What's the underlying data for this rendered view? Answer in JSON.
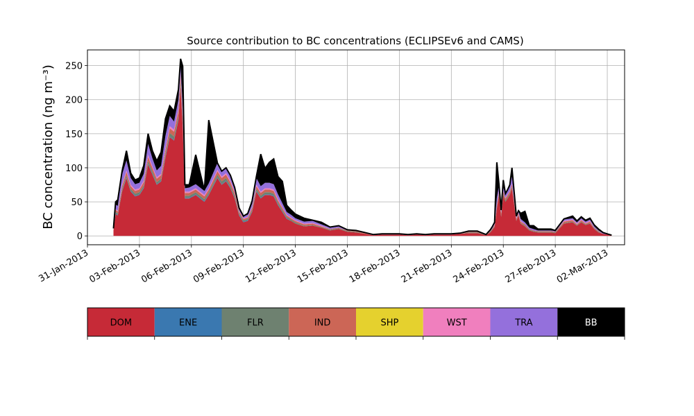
{
  "chart_data": [
    {
      "type": "area",
      "title": "Source contribution to BC concentrations (ECLIPSEv6 and CAMS)",
      "ylabel": "BC concentration (ng m⁻³)",
      "xlabel": "",
      "ylim": [
        -13,
        273
      ],
      "xlim": [
        "2013-01-31",
        "2013-03-03"
      ],
      "grid": true,
      "x_ticks": [
        "31-Jan-2013",
        "03-Feb-2013",
        "06-Feb-2013",
        "09-Feb-2013",
        "12-Feb-2013",
        "15-Feb-2013",
        "18-Feb-2013",
        "21-Feb-2013",
        "24-Feb-2013",
        "27-Feb-2013",
        "02-Mar-2013"
      ],
      "y_ticks": [
        0,
        50,
        100,
        150,
        200,
        250
      ],
      "x": [
        "2013-02-01 12:00",
        "2013-02-01 15:00",
        "2013-02-01 18:00",
        "2013-02-02 00:00",
        "2013-02-02 06:00",
        "2013-02-02 12:00",
        "2013-02-02 18:00",
        "2013-02-03 00:00",
        "2013-02-03 06:00",
        "2013-02-03 12:00",
        "2013-02-03 18:00",
        "2013-02-04 00:00",
        "2013-02-04 06:00",
        "2013-02-04 12:00",
        "2013-02-04 18:00",
        "2013-02-05 00:00",
        "2013-02-05 06:00",
        "2013-02-05 09:00",
        "2013-02-05 12:00",
        "2013-02-05 15:00",
        "2013-02-05 21:00",
        "2013-02-06 06:00",
        "2013-02-06 18:00",
        "2013-02-07 00:00",
        "2013-02-07 12:00",
        "2013-02-07 18:00",
        "2013-02-08 00:00",
        "2013-02-08 06:00",
        "2013-02-08 12:00",
        "2013-02-08 18:00",
        "2013-02-09 00:00",
        "2013-02-09 06:00",
        "2013-02-09 12:00",
        "2013-02-09 18:00",
        "2013-02-10 00:00",
        "2013-02-10 06:00",
        "2013-02-10 12:00",
        "2013-02-10 18:00",
        "2013-02-11 00:00",
        "2013-02-11 06:00",
        "2013-02-11 12:00",
        "2013-02-11 18:00",
        "2013-02-12 00:00",
        "2013-02-12 12:00",
        "2013-02-13 00:00",
        "2013-02-13 12:00",
        "2013-02-14 00:00",
        "2013-02-14 12:00",
        "2013-02-15 00:00",
        "2013-02-15 12:00",
        "2013-02-16 00:00",
        "2013-02-16 12:00",
        "2013-02-17 00:00",
        "2013-02-17 12:00",
        "2013-02-18 00:00",
        "2013-02-18 12:00",
        "2013-02-19 00:00",
        "2013-02-19 12:00",
        "2013-02-20 00:00",
        "2013-02-20 12:00",
        "2013-02-21 00:00",
        "2013-02-21 12:00",
        "2013-02-22 00:00",
        "2013-02-22 12:00",
        "2013-02-23 00:00",
        "2013-02-23 06:00",
        "2013-02-23 09:00",
        "2013-02-23 12:00",
        "2013-02-23 15:00",
        "2013-02-23 18:00",
        "2013-02-23 21:00",
        "2013-02-24 00:00",
        "2013-02-24 03:00",
        "2013-02-24 06:00",
        "2013-02-24 09:00",
        "2013-02-24 12:00",
        "2013-02-24 18:00",
        "2013-02-24 21:00",
        "2013-02-25 00:00",
        "2013-02-25 06:00",
        "2013-02-25 12:00",
        "2013-02-25 18:00",
        "2013-02-26 00:00",
        "2013-02-26 06:00",
        "2013-02-26 12:00",
        "2013-02-26 18:00",
        "2013-02-27 00:00",
        "2013-02-27 12:00",
        "2013-02-28 00:00",
        "2013-02-28 06:00",
        "2013-02-28 12:00",
        "2013-02-28 18:00",
        "2013-03-01 00:00",
        "2013-03-01 06:00",
        "2013-03-01 12:00",
        "2013-03-01 18:00",
        "2013-03-02 00:00",
        "2013-03-02 06:00"
      ],
      "series": [
        {
          "name": "DOM",
          "color": "#c62a37",
          "values": [
            8,
            32,
            30,
            65,
            85,
            65,
            58,
            60,
            70,
            105,
            90,
            75,
            80,
            115,
            145,
            140,
            170,
            220,
            160,
            55,
            55,
            60,
            50,
            60,
            85,
            75,
            80,
            70,
            55,
            30,
            20,
            22,
            35,
            65,
            55,
            60,
            60,
            58,
            45,
            35,
            25,
            22,
            18,
            14,
            15,
            12,
            8,
            10,
            6,
            5,
            3,
            1,
            2,
            2,
            2,
            1,
            2,
            1,
            2,
            2,
            2,
            3,
            4,
            4,
            1,
            5,
            9,
            13,
            40,
            60,
            28,
            60,
            50,
            55,
            60,
            70,
            22,
            30,
            18,
            14,
            8,
            6,
            5,
            5,
            5,
            5,
            4,
            18,
            20,
            15,
            20,
            16,
            18,
            10,
            5,
            3,
            2,
            1
          ]
        },
        {
          "name": "ENE",
          "color": "#3a78b0",
          "values": [
            0,
            1,
            1,
            1,
            1,
            1,
            1,
            1,
            1,
            1,
            1,
            1,
            1,
            1,
            1,
            1,
            1,
            1,
            1,
            1,
            1,
            1,
            1,
            1,
            1,
            1,
            1,
            1,
            1,
            1,
            1,
            1,
            1,
            1,
            1,
            1,
            1,
            1,
            1,
            1,
            1,
            0,
            0,
            0,
            0,
            0,
            0,
            0,
            0,
            0,
            0,
            0,
            0,
            0,
            0,
            0,
            0,
            0,
            0,
            0,
            0,
            0,
            0,
            0,
            0,
            0,
            0,
            0,
            0,
            0,
            0,
            0,
            0,
            0,
            0,
            0,
            0,
            0,
            0,
            0,
            0,
            0,
            0,
            0,
            0,
            0,
            0,
            0,
            0,
            0,
            0,
            0,
            0,
            0,
            0,
            0,
            0,
            0
          ]
        },
        {
          "name": "FLR",
          "color": "#6e8170",
          "values": [
            1,
            2,
            2,
            3,
            3,
            3,
            3,
            3,
            3,
            4,
            4,
            3,
            3,
            4,
            5,
            5,
            5,
            6,
            5,
            3,
            3,
            3,
            3,
            3,
            4,
            4,
            4,
            3,
            3,
            2,
            2,
            2,
            2,
            3,
            3,
            3,
            3,
            3,
            3,
            2,
            2,
            2,
            2,
            1,
            1,
            1,
            1,
            1,
            1,
            1,
            0,
            0,
            0,
            0,
            0,
            0,
            0,
            0,
            0,
            0,
            0,
            0,
            1,
            1,
            0,
            1,
            1,
            1,
            2,
            2,
            2,
            2,
            2,
            2,
            2,
            2,
            1,
            1,
            1,
            1,
            1,
            1,
            1,
            1,
            1,
            1,
            1,
            1,
            1,
            1,
            1,
            1,
            1,
            1,
            1,
            0,
            0,
            0
          ]
        },
        {
          "name": "IND",
          "color": "#cc6656",
          "values": [
            1,
            3,
            3,
            4,
            5,
            4,
            4,
            4,
            5,
            6,
            5,
            5,
            5,
            6,
            7,
            7,
            8,
            9,
            8,
            4,
            4,
            4,
            4,
            4,
            5,
            5,
            5,
            5,
            4,
            3,
            2,
            2,
            3,
            4,
            4,
            4,
            4,
            4,
            3,
            3,
            2,
            2,
            2,
            2,
            2,
            1,
            1,
            1,
            1,
            1,
            1,
            0,
            0,
            0,
            0,
            0,
            0,
            0,
            0,
            0,
            0,
            0,
            1,
            1,
            0,
            1,
            1,
            2,
            3,
            3,
            3,
            3,
            3,
            3,
            3,
            4,
            2,
            2,
            2,
            2,
            1,
            1,
            1,
            1,
            1,
            1,
            1,
            2,
            2,
            1,
            2,
            1,
            2,
            1,
            1,
            0,
            0,
            0
          ]
        },
        {
          "name": "SHP",
          "color": "#e5d12e",
          "values": [
            0,
            0,
            0,
            0,
            0,
            0,
            0,
            0,
            0,
            0,
            0,
            0,
            0,
            0,
            0,
            0,
            0,
            0,
            0,
            0,
            0,
            0,
            0,
            0,
            0,
            0,
            0,
            0,
            0,
            0,
            0,
            0,
            0,
            0,
            0,
            0,
            0,
            0,
            0,
            0,
            0,
            0,
            0,
            0,
            0,
            0,
            0,
            0,
            0,
            0,
            0,
            0,
            0,
            0,
            0,
            0,
            0,
            0,
            0,
            0,
            0,
            0,
            0,
            0,
            0,
            0,
            0,
            0,
            0,
            0,
            0,
            0,
            0,
            0,
            0,
            0,
            0,
            0,
            0,
            0,
            0,
            0,
            0,
            0,
            0,
            0,
            0,
            0,
            0,
            0,
            0,
            0,
            0,
            0,
            0,
            0,
            0,
            0
          ]
        },
        {
          "name": "WST",
          "color": "#f07fbe",
          "values": [
            0,
            1,
            1,
            2,
            2,
            2,
            2,
            2,
            2,
            3,
            2,
            2,
            2,
            3,
            3,
            3,
            3,
            4,
            3,
            2,
            2,
            2,
            2,
            2,
            2,
            2,
            2,
            2,
            2,
            1,
            1,
            1,
            1,
            2,
            2,
            2,
            2,
            2,
            2,
            1,
            1,
            1,
            1,
            1,
            1,
            1,
            0,
            0,
            0,
            0,
            0,
            0,
            0,
            0,
            0,
            0,
            0,
            0,
            0,
            0,
            0,
            0,
            0,
            0,
            0,
            0,
            0,
            1,
            1,
            1,
            1,
            1,
            1,
            1,
            1,
            1,
            1,
            1,
            1,
            0,
            0,
            0,
            0,
            0,
            0,
            0,
            0,
            1,
            1,
            1,
            1,
            1,
            1,
            0,
            0,
            0,
            0,
            0
          ]
        },
        {
          "name": "TRA",
          "color": "#9470dc",
          "values": [
            1,
            7,
            7,
            15,
            15,
            10,
            8,
            8,
            10,
            16,
            12,
            10,
            12,
            18,
            15,
            12,
            13,
            10,
            12,
            5,
            6,
            6,
            6,
            7,
            10,
            8,
            8,
            8,
            6,
            4,
            3,
            3,
            5,
            10,
            8,
            8,
            8,
            8,
            7,
            6,
            4,
            4,
            3,
            3,
            3,
            2,
            2,
            2,
            1,
            1,
            1,
            1,
            1,
            1,
            1,
            1,
            1,
            1,
            1,
            1,
            1,
            1,
            1,
            1,
            1,
            1,
            2,
            2,
            10,
            8,
            3,
            5,
            5,
            6,
            6,
            10,
            3,
            3,
            3,
            3,
            2,
            2,
            1,
            1,
            1,
            1,
            1,
            2,
            2,
            2,
            2,
            2,
            2,
            2,
            1,
            1,
            1,
            0
          ]
        },
        {
          "name": "BB",
          "color": "#000000",
          "values": [
            0,
            4,
            9,
            5,
            14,
            7,
            6,
            7,
            12,
            15,
            11,
            14,
            20,
            25,
            15,
            15,
            15,
            10,
            60,
            5,
            4,
            43,
            1,
            93,
            0,
            0,
            0,
            0,
            0,
            0,
            0,
            2,
            4,
            2,
            47,
            21,
            30,
            37,
            26,
            32,
            10,
            7,
            6,
            5,
            1,
            3,
            1,
            1,
            0,
            0,
            0,
            0,
            0,
            0,
            0,
            0,
            0,
            0,
            0,
            0,
            0,
            0,
            0,
            0,
            0,
            1,
            1,
            1,
            52,
            2,
            1,
            11,
            1,
            1,
            3,
            13,
            0,
            0,
            8,
            16,
            3,
            5,
            2,
            2,
            2,
            2,
            1,
            1,
            3,
            2,
            2,
            2,
            2,
            2,
            2,
            1,
            0,
            0
          ]
        }
      ],
      "legend": {
        "placement": "bottom",
        "labels": [
          "DOM",
          "ENE",
          "FLR",
          "IND",
          "SHP",
          "WST",
          "TRA",
          "BB"
        ]
      }
    }
  ]
}
